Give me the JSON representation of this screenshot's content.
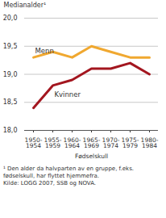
{
  "chart_data": {
    "type": "line",
    "y_label": "Medianalder¹",
    "x_label": "Fødselskull",
    "categories": [
      "1950-1954",
      "1955-1959",
      "1960-1964",
      "1965-1969",
      "1970-1974",
      "1975-1979",
      "1980-1984"
    ],
    "series": [
      {
        "name": "Menn",
        "color": "#f0a830",
        "values": [
          19.3,
          19.4,
          19.3,
          19.5,
          19.4,
          19.3,
          19.3
        ]
      },
      {
        "name": "Kvinner",
        "color": "#a3161f",
        "values": [
          18.4,
          18.8,
          18.9,
          19.1,
          19.1,
          19.2,
          19.0
        ]
      }
    ],
    "ylim": [
      18,
      20
    ],
    "yticks": [
      {
        "value": 18,
        "label": "18,0"
      },
      {
        "value": 18.5,
        "label": "18,5"
      },
      {
        "value": 19,
        "label": "19,0"
      },
      {
        "value": 19.5,
        "label": "19,5"
      },
      {
        "value": 20,
        "label": "20,0"
      }
    ],
    "grid": true,
    "footnote": "¹ Den alder da halvparten av en gruppe, f.eks. fødselskull, har flyttet hjemmefra.",
    "source": "Kilde: LOGG 2007, SSB og NOVA."
  }
}
